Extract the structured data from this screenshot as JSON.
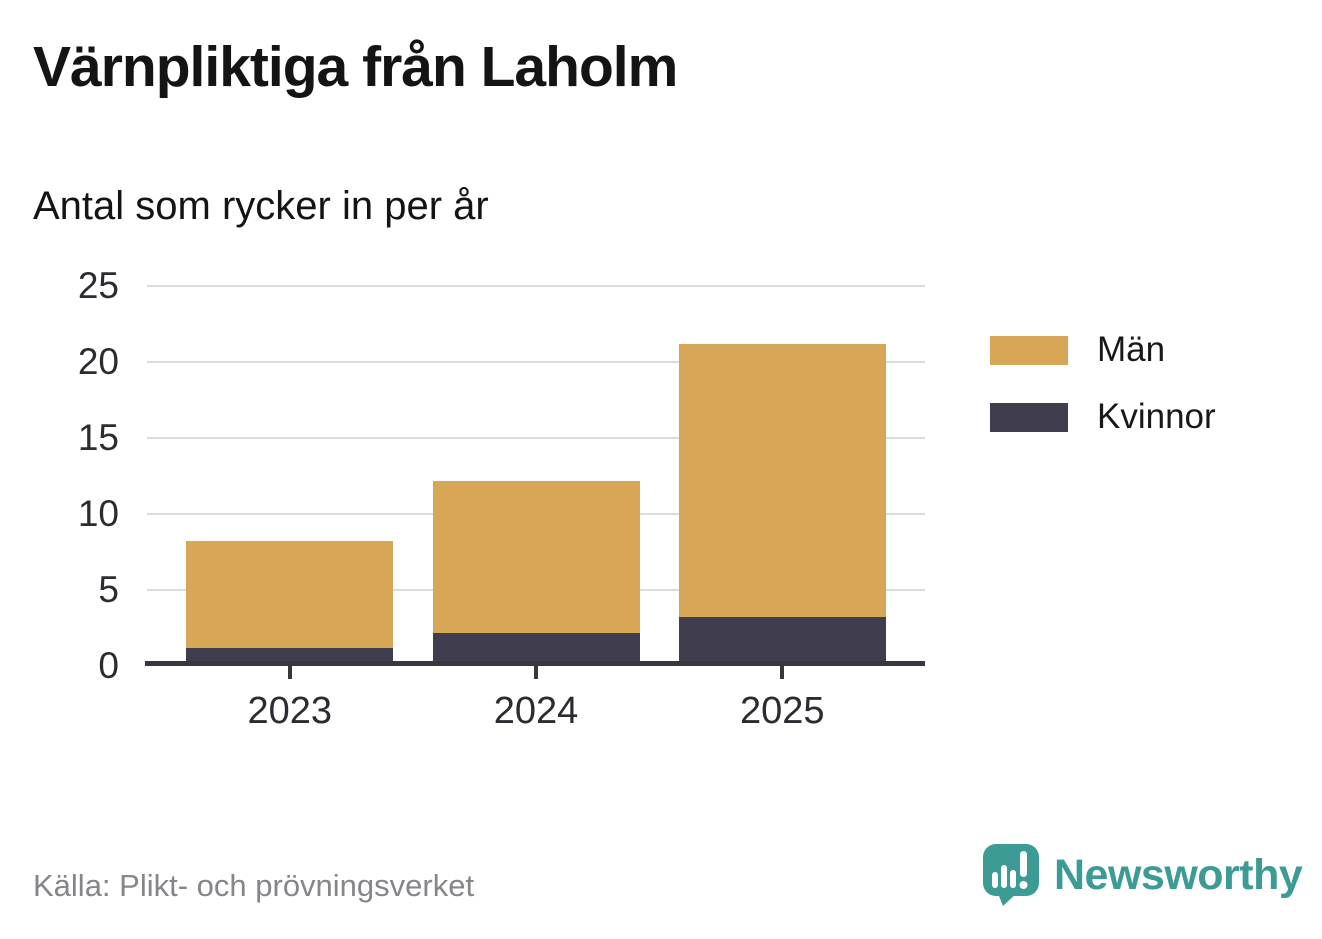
{
  "header": {
    "title": "Värnpliktiga från Laholm",
    "subtitle": "Antal som rycker in per år"
  },
  "chart_data": {
    "type": "bar",
    "stacked": true,
    "title": "Värnpliktiga från Laholm",
    "subtitle": "Antal som rycker in per år",
    "categories": [
      "2023",
      "2024",
      "2025"
    ],
    "series": [
      {
        "name": "Kvinnor",
        "color": "#403e4e",
        "values": [
          1,
          2,
          3
        ]
      },
      {
        "name": "Män",
        "color": "#d8a657",
        "values": [
          7,
          10,
          18
        ]
      }
    ],
    "totals": [
      8,
      12,
      21
    ],
    "yticks": [
      0,
      5,
      10,
      15,
      20,
      25
    ],
    "ylim": [
      0,
      25
    ],
    "grid": true,
    "grid_color": "#dcdcdc",
    "axis_color": "#38363f",
    "legend_position": "right"
  },
  "legend": {
    "items": [
      {
        "label": "Män",
        "color": "#d8a657"
      },
      {
        "label": "Kvinnor",
        "color": "#403e4e"
      }
    ]
  },
  "footer": {
    "source": "Källa: Plikt- och prövningsverket",
    "brand": "Newsworthy",
    "brand_color": "#3d9b96"
  }
}
